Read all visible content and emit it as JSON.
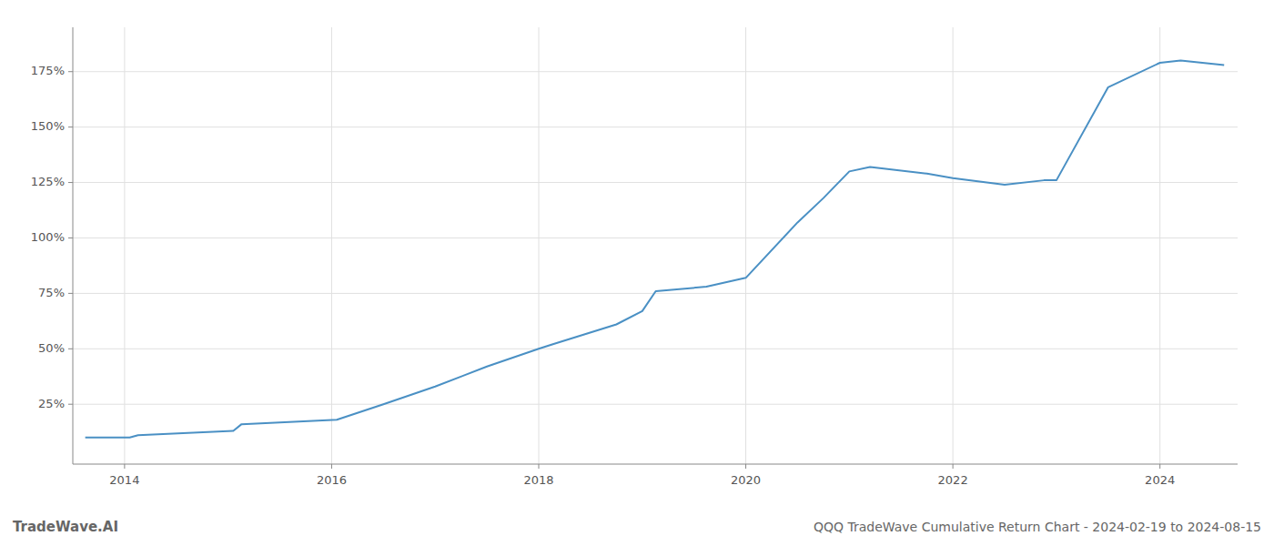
{
  "chart_data": {
    "type": "line",
    "title": "QQQ TradeWave Cumulative Return Chart - 2024-02-19 to 2024-08-15",
    "annotations": [
      "TradeWave.AI"
    ],
    "x": [
      2013.62,
      2014.05,
      2014.13,
      2015.05,
      2015.13,
      2016.05,
      2016.5,
      2017.0,
      2017.5,
      2018.0,
      2018.13,
      2018.75,
      2019.0,
      2019.13,
      2019.62,
      2020.0,
      2020.5,
      2020.75,
      2021.0,
      2021.2,
      2021.75,
      2022.0,
      2022.5,
      2022.88,
      2023.0,
      2023.5,
      2024.0,
      2024.2,
      2024.62
    ],
    "values": [
      10,
      10,
      11,
      13,
      16,
      18,
      25,
      33,
      42,
      50,
      52,
      61,
      67,
      76,
      78,
      82,
      107,
      118,
      130,
      132,
      129,
      127,
      124,
      126,
      126,
      168,
      179,
      180,
      178
    ],
    "color": "#4a90c4",
    "xlim": [
      2013.5,
      2024.75
    ],
    "xticks": [
      2014,
      2016,
      2018,
      2020,
      2022,
      2024
    ],
    "ylim": [
      -2,
      195
    ],
    "yticks": [
      {
        "value": 25,
        "label": "25%"
      },
      {
        "value": 50,
        "label": "50%"
      },
      {
        "value": 75,
        "label": "75%"
      },
      {
        "value": 100,
        "label": "100%"
      },
      {
        "value": 125,
        "label": "125%"
      },
      {
        "value": 150,
        "label": "150%"
      },
      {
        "value": 175,
        "label": "175%"
      }
    ],
    "grid": true
  }
}
